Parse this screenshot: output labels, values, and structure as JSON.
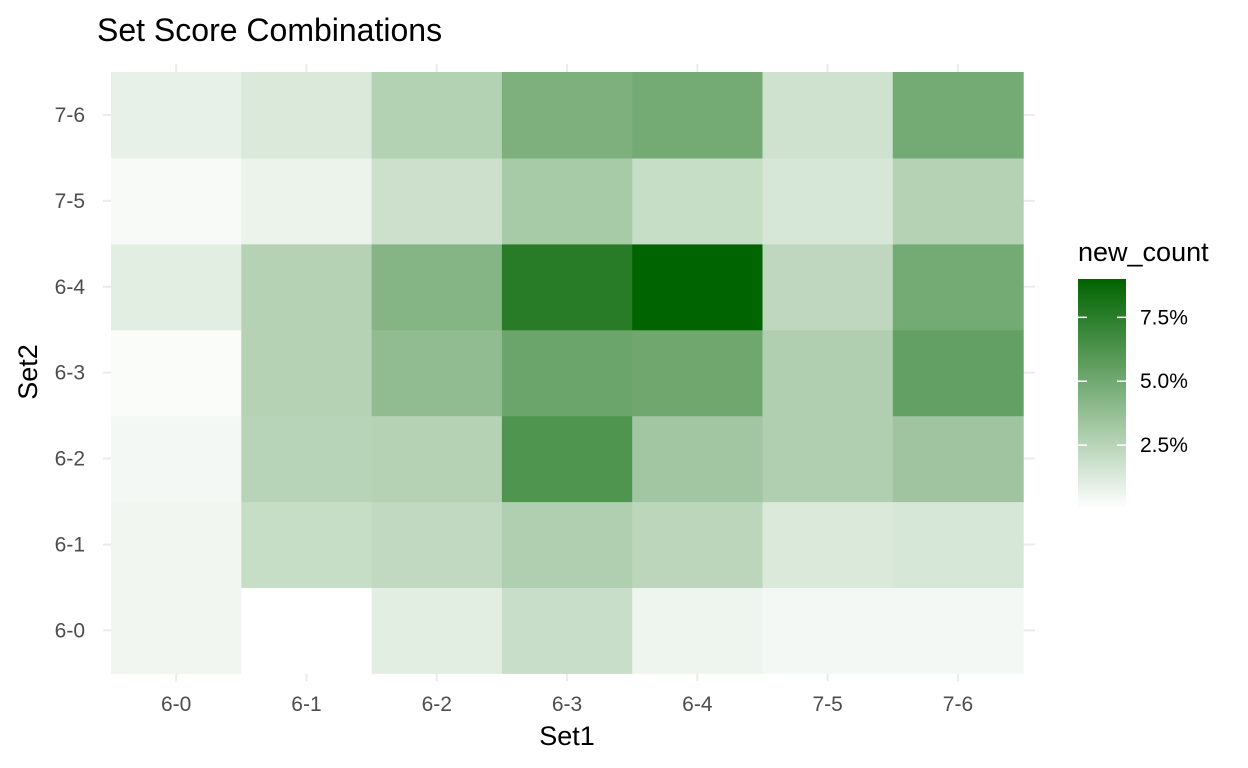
{
  "chart_data": {
    "type": "heatmap",
    "title": "Set Score Combinations",
    "xlabel": "Set1",
    "ylabel": "Set2",
    "x_categories": [
      "6-0",
      "6-1",
      "6-2",
      "6-3",
      "6-4",
      "7-5",
      "7-6"
    ],
    "y_categories": [
      "6-0",
      "6-1",
      "6-2",
      "6-3",
      "6-4",
      "7-5",
      "7-6"
    ],
    "values_percent": [
      [
        0.5,
        0.0,
        1.0,
        1.9,
        0.6,
        0.4,
        0.4
      ],
      [
        0.5,
        2.0,
        2.2,
        2.8,
        2.4,
        1.3,
        1.4
      ],
      [
        0.4,
        2.5,
        2.6,
        6.2,
        3.3,
        2.8,
        3.4
      ],
      [
        0.2,
        2.6,
        3.9,
        5.2,
        5.1,
        2.8,
        5.5
      ],
      [
        1.0,
        2.6,
        4.3,
        7.6,
        9.0,
        2.3,
        4.9
      ],
      [
        0.3,
        0.7,
        1.8,
        3.1,
        2.0,
        1.4,
        2.6
      ],
      [
        0.8,
        1.3,
        2.7,
        4.6,
        4.9,
        1.7,
        4.9
      ]
    ],
    "legend": {
      "title": "new_count",
      "ticks": [
        2.5,
        5.0,
        7.5
      ],
      "tick_labels": [
        "2.5%",
        "5.0%",
        "7.5%"
      ],
      "range_percent": [
        0.0,
        9.0
      ],
      "low_color": "#ffffff",
      "high_color": "#006400",
      "placement": "right"
    },
    "grid": true,
    "grid_color": "#ebebeb"
  }
}
